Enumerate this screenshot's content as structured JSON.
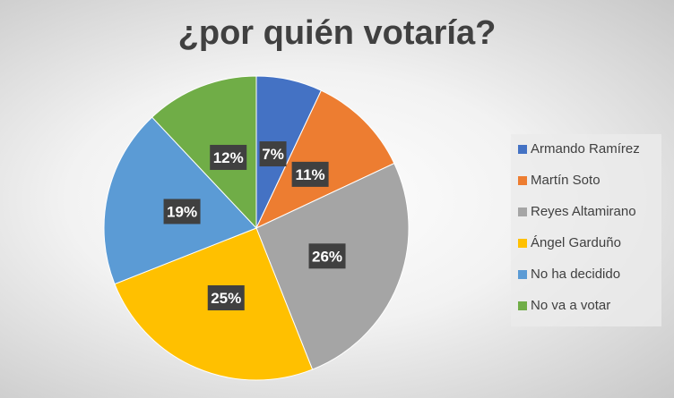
{
  "chart_data": {
    "type": "pie",
    "title": "¿por quién votaría?",
    "categories": [
      "Armando Ramírez",
      "Martín Soto",
      "Reyes Altamirano",
      "Ángel Garduño",
      "No ha decidido",
      "No va a votar"
    ],
    "values": [
      7,
      11,
      26,
      25,
      19,
      12
    ],
    "labels": [
      "7%",
      "11%",
      "26%",
      "25%",
      "19%",
      "12%"
    ],
    "colors": [
      "#4472c4",
      "#ed7d31",
      "#a5a5a5",
      "#ffc000",
      "#5b9bd5",
      "#70ad47"
    ],
    "legend_position": "right"
  }
}
